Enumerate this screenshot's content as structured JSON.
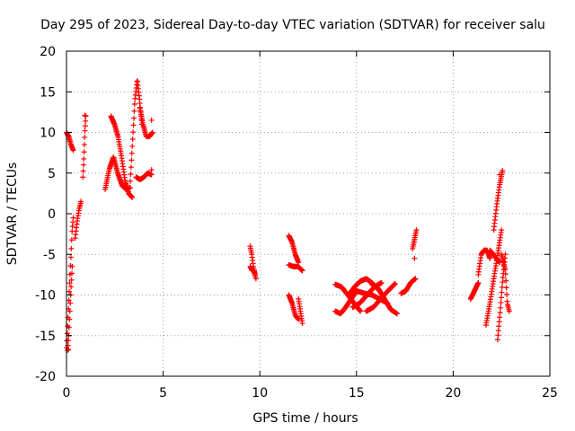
{
  "chart_data": {
    "type": "scatter",
    "title": "Day 295 of 2023, Sidereal Day-to-day VTEC variation (SDTVAR) for receiver salu",
    "xlabel": "GPS time / hours",
    "ylabel": "SDTVAR / TECUs",
    "xlim": [
      0,
      25
    ],
    "ylim": [
      -20,
      20
    ],
    "xticks": [
      0,
      5,
      10,
      15,
      20,
      25
    ],
    "yticks": [
      -20,
      -15,
      -10,
      -5,
      0,
      5,
      10,
      15,
      20
    ],
    "grid": true,
    "marker": "+",
    "color": "#ff0000",
    "tracks": [
      {
        "x0": 0.0,
        "x1": 0.35,
        "y": [
          10,
          9.5,
          8.5,
          7.8
        ]
      },
      {
        "x0": 0.0,
        "x1": 0.35,
        "y": [
          -16.5,
          -14,
          -11,
          -8,
          -5,
          -2,
          -0.5
        ]
      },
      {
        "x0": 0.05,
        "x1": 0.3,
        "y": [
          -16.8,
          -15,
          -12,
          -9,
          -6.5
        ]
      },
      {
        "x0": 0.45,
        "x1": 0.75,
        "y": [
          -3,
          -1,
          0.5,
          1.5
        ]
      },
      {
        "x0": 0.85,
        "x1": 1.0,
        "y": [
          4.5,
          7,
          10,
          12
        ]
      },
      {
        "x0": 2.0,
        "x1": 3.3,
        "y": [
          3,
          5.5,
          7,
          5,
          3.5,
          3,
          3.2
        ]
      },
      {
        "x0": 2.3,
        "x1": 3.4,
        "y": [
          12,
          11,
          9.5,
          7,
          4,
          2.5,
          2
        ]
      },
      {
        "x0": 3.3,
        "x1": 3.9,
        "y": [
          4,
          9,
          14,
          16.5,
          14,
          11
        ]
      },
      {
        "x0": 3.6,
        "x1": 4.4,
        "y": [
          4.5,
          4.2,
          4.5,
          5,
          4.8
        ]
      },
      {
        "x0": 3.8,
        "x1": 4.45,
        "y": [
          13,
          11,
          9.5,
          9.5,
          10
        ]
      },
      {
        "x0": 9.5,
        "x1": 9.75,
        "y": [
          -4,
          -5,
          -6.5,
          -7.5
        ]
      },
      {
        "x0": 9.5,
        "x1": 9.8,
        "y": [
          -6.5,
          -7,
          -7,
          -8
        ]
      },
      {
        "x0": 11.5,
        "x1": 12.0,
        "y": [
          -2.7,
          -3.5,
          -5,
          -6
        ]
      },
      {
        "x0": 11.5,
        "x1": 12.2,
        "y": [
          -6.3,
          -6.5,
          -6.5,
          -7
        ]
      },
      {
        "x0": 11.5,
        "x1": 12.0,
        "y": [
          -10,
          -11,
          -12.5,
          -13
        ]
      },
      {
        "x0": 12.0,
        "x1": 12.2,
        "y": [
          -10.5,
          -13.5
        ]
      },
      {
        "x0": 13.9,
        "x1": 15.0,
        "y": [
          -12,
          -12.3,
          -11.5,
          -10.5,
          -9.5
        ]
      },
      {
        "x0": 13.9,
        "x1": 15.2,
        "y": [
          -8.7,
          -9,
          -10,
          -11,
          -12
        ]
      },
      {
        "x0": 14.6,
        "x1": 16.1,
        "y": [
          -10,
          -9,
          -8.3,
          -8,
          -8.5,
          -9.3
        ]
      },
      {
        "x0": 14.8,
        "x1": 16.3,
        "y": [
          -11.5,
          -11,
          -10,
          -9,
          -8.5
        ]
      },
      {
        "x0": 15.0,
        "x1": 16.6,
        "y": [
          -9.5,
          -9.8,
          -10,
          -10.5,
          -11
        ]
      },
      {
        "x0": 15.5,
        "x1": 17.0,
        "y": [
          -12,
          -11.5,
          -10.5,
          -9.5,
          -8.6
        ]
      },
      {
        "x0": 15.8,
        "x1": 17.1,
        "y": [
          -8.7,
          -9.2,
          -10.5,
          -11.8,
          -12.3
        ]
      },
      {
        "x0": 17.3,
        "x1": 18.05,
        "y": [
          -9.8,
          -9.5,
          -8.5,
          -8
        ]
      },
      {
        "x0": 17.9,
        "x1": 18.1,
        "y": [
          -4.3,
          -2
        ]
      },
      {
        "x0": 20.9,
        "x1": 21.3,
        "y": [
          -10.5,
          -9.5,
          -8.5
        ]
      },
      {
        "x0": 21.3,
        "x1": 21.9,
        "y": [
          -7.5,
          -5,
          -4.5,
          -4.5,
          -5.5
        ]
      },
      {
        "x0": 21.7,
        "x1": 22.5,
        "y": [
          -13.7,
          -11,
          -8,
          -5,
          -2
        ]
      },
      {
        "x0": 21.9,
        "x1": 22.4,
        "y": [
          -4.5,
          -5,
          -5.5,
          -6
        ]
      },
      {
        "x0": 22.1,
        "x1": 22.55,
        "y": [
          -2,
          1,
          3.5,
          5.3
        ]
      },
      {
        "x0": 22.3,
        "x1": 22.7,
        "y": [
          -15.5,
          -12,
          -8,
          -5
        ]
      },
      {
        "x0": 22.5,
        "x1": 22.9,
        "y": [
          -5,
          -6,
          -7,
          -11,
          -12
        ]
      }
    ],
    "extra_points": [
      [
        0.95,
        12.1
      ],
      [
        18.0,
        -5.5
      ],
      [
        22.4,
        4.8
      ],
      [
        4.4,
        5.4
      ],
      [
        4.4,
        11.5
      ],
      [
        0.1,
        -16.7
      ]
    ]
  }
}
